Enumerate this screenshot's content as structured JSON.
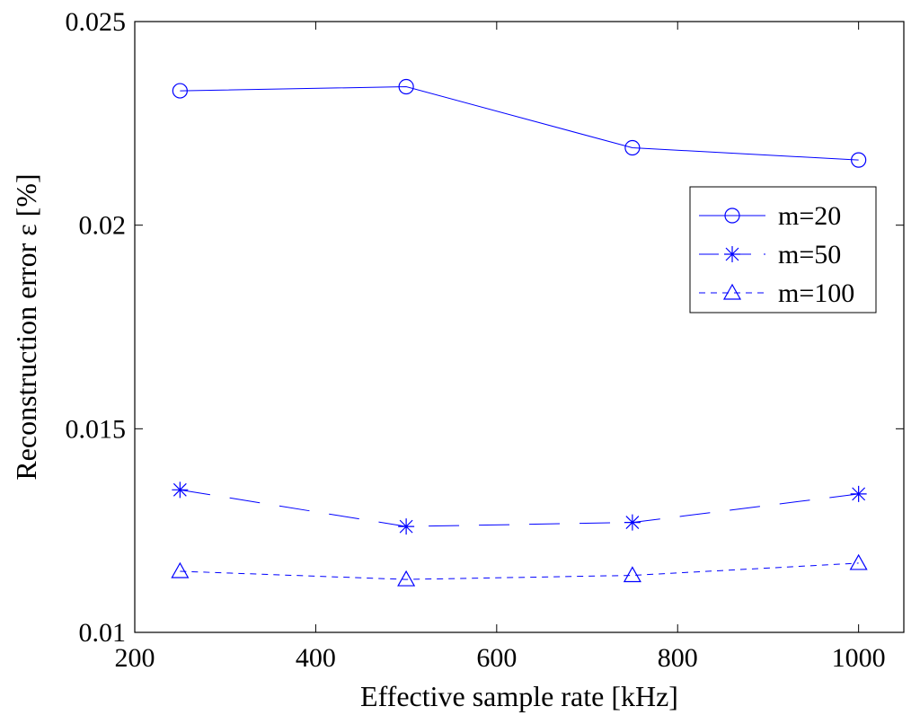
{
  "chart_data": {
    "type": "line",
    "title": "",
    "xlabel": "Effective sample rate [kHz]",
    "ylabel": "Reconstruction error ε [%]",
    "xlim": [
      200,
      1050
    ],
    "ylim": [
      0.01,
      0.025
    ],
    "xticks": [
      200,
      400,
      600,
      800,
      1000
    ],
    "xtick_labels": [
      "200",
      "400",
      "600",
      "800",
      "1000"
    ],
    "yticks": [
      0.01,
      0.015,
      0.02,
      0.025
    ],
    "ytick_labels": [
      "0.01",
      "0.015",
      "0.02",
      "0.025"
    ],
    "grid": false,
    "legend_position": "right",
    "color": "#0000ff",
    "series": [
      {
        "name": "m=20",
        "marker": "circle",
        "line_style": "solid",
        "x": [
          250,
          500,
          750,
          1000
        ],
        "y": [
          0.0233,
          0.0234,
          0.0219,
          0.0216
        ]
      },
      {
        "name": "m=50",
        "marker": "star",
        "line_style": "dashed",
        "x": [
          250,
          500,
          750,
          1000
        ],
        "y": [
          0.0135,
          0.0126,
          0.0127,
          0.0134
        ]
      },
      {
        "name": "m=100",
        "marker": "triangle",
        "line_style": "dotted",
        "x": [
          250,
          500,
          750,
          1000
        ],
        "y": [
          0.0115,
          0.0113,
          0.0114,
          0.0117
        ]
      }
    ]
  }
}
